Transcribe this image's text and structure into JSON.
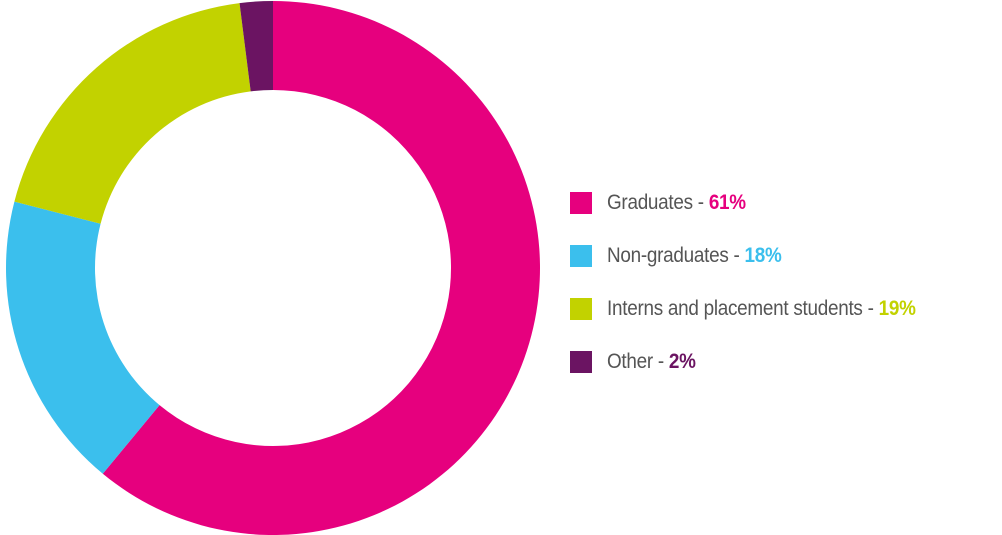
{
  "chart_data": {
    "type": "pie",
    "title": "",
    "categories": [
      "Graduates",
      "Non-graduates",
      "Interns and placement students",
      "Other"
    ],
    "values": [
      61,
      18,
      19,
      2
    ],
    "value_labels": [
      "61%",
      "18%",
      "19%",
      "2%"
    ],
    "colors": [
      "#e6007e",
      "#3bbfed",
      "#c2d200",
      "#6b1462"
    ],
    "separator": " - ",
    "donut": true,
    "legend": "right"
  }
}
